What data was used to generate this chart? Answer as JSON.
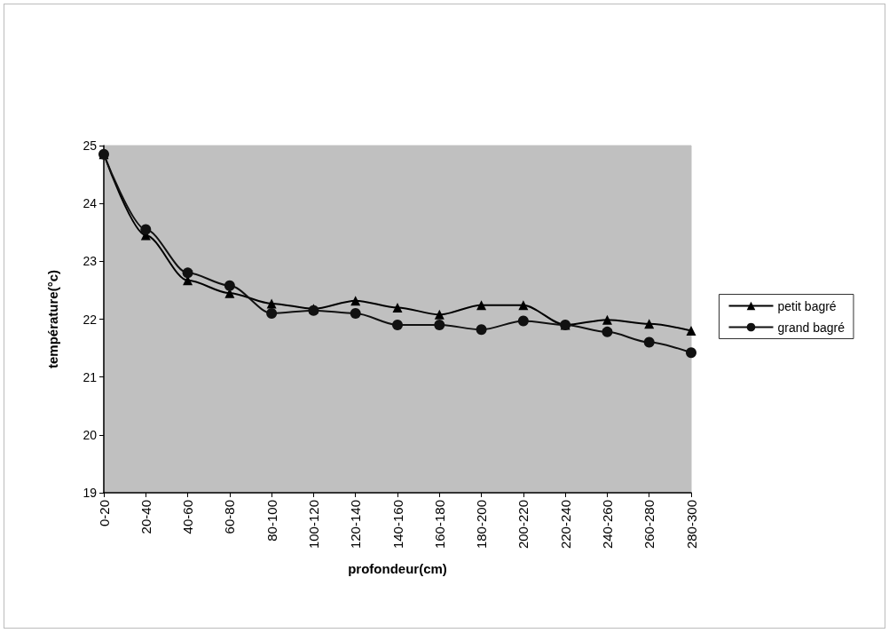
{
  "chart_data": {
    "type": "line",
    "xlabel": "profondeur(cm)",
    "ylabel": "température(°c)",
    "categories": [
      "0-20",
      "20-40",
      "40-60",
      "60-80",
      "80-100",
      "100-120",
      "120-140",
      "140-160",
      "160-180",
      "180-200",
      "200-220",
      "220-240",
      "240-260",
      "260-280",
      "280-300"
    ],
    "series": [
      {
        "name": "petit bagré",
        "color": "#000000",
        "marker": "triangle",
        "values": [
          24.85,
          23.45,
          22.67,
          22.45,
          22.27,
          22.18,
          22.32,
          22.2,
          22.08,
          22.24,
          22.24,
          21.9,
          21.99,
          21.92,
          21.8
        ]
      },
      {
        "name": "grand bagré",
        "color": "#111111",
        "marker": "circle",
        "values": [
          24.85,
          23.55,
          22.8,
          22.58,
          22.1,
          22.15,
          22.1,
          21.9,
          21.9,
          21.82,
          21.97,
          21.9,
          21.78,
          21.6,
          21.42
        ]
      }
    ],
    "ylim": [
      19,
      25
    ],
    "yticks": [
      19,
      20,
      21,
      22,
      23,
      24,
      25
    ],
    "grid": false,
    "legend": "right",
    "line_style": "solid"
  }
}
